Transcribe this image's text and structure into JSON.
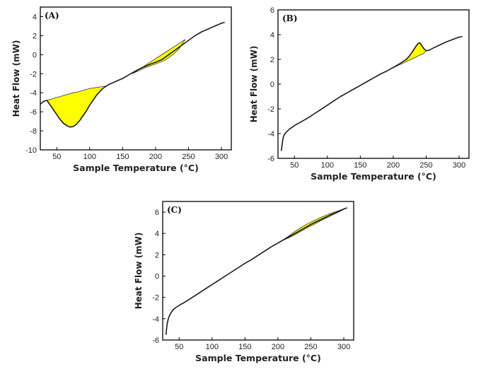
{
  "figure": {
    "curve_color": "#1a1a1a",
    "fill_color": "#ffff00",
    "fill_stroke": "#b8a800"
  },
  "chart_data": [
    {
      "type": "line",
      "panel_label": "(A)",
      "xlabel": "Sample Temperature (°C)",
      "ylabel": "Heat Flow (mW)",
      "xlim": [
        25,
        315
      ],
      "ylim": [
        -10,
        5
      ],
      "xticks": [
        50,
        100,
        150,
        200,
        250,
        300
      ],
      "yticks": [
        -10,
        -8,
        -6,
        -4,
        -2,
        0,
        2,
        4
      ],
      "grid": false,
      "series": [
        {
          "x": [
            25,
            30,
            35,
            40,
            45,
            50,
            55,
            60,
            65,
            70,
            75,
            80,
            85,
            90,
            95,
            100,
            105,
            110,
            115,
            120,
            125,
            130,
            140,
            150,
            160,
            170,
            180,
            190,
            200,
            210,
            220,
            230,
            240,
            250,
            260,
            270,
            280,
            290,
            300,
            305
          ],
          "y": [
            -5.2,
            -4.9,
            -4.8,
            -5.3,
            -5.8,
            -6.3,
            -6.8,
            -7.2,
            -7.45,
            -7.6,
            -7.55,
            -7.3,
            -6.9,
            -6.4,
            -5.9,
            -5.3,
            -4.8,
            -4.3,
            -3.9,
            -3.55,
            -3.3,
            -3.1,
            -2.8,
            -2.5,
            -2.1,
            -1.7,
            -1.35,
            -1.05,
            -0.8,
            -0.5,
            0.0,
            0.5,
            1.0,
            1.5,
            2.0,
            2.4,
            2.7,
            3.0,
            3.3,
            3.4
          ]
        }
      ],
      "shaded_regions": [
        {
          "x": [
            35,
            40,
            45,
            50,
            55,
            60,
            65,
            70,
            75,
            80,
            85,
            90,
            95,
            100,
            105,
            110,
            115,
            120,
            125
          ],
          "upper": [
            -4.8,
            -4.7,
            -4.6,
            -4.5,
            -4.4,
            -4.3,
            -4.2,
            -4.1,
            -4.0,
            -3.95,
            -3.85,
            -3.75,
            -3.65,
            -3.55,
            -3.5,
            -3.45,
            -3.4,
            -3.35,
            -3.3
          ],
          "lower": [
            -4.8,
            -5.3,
            -5.8,
            -6.3,
            -6.8,
            -7.2,
            -7.45,
            -7.6,
            -7.55,
            -7.3,
            -6.9,
            -6.4,
            -5.9,
            -5.3,
            -4.8,
            -4.3,
            -3.9,
            -3.55,
            -3.3
          ]
        },
        {
          "x": [
            165,
            175,
            185,
            195,
            205,
            215,
            225,
            235,
            245
          ],
          "upper": [
            -2.0,
            -1.55,
            -1.1,
            -0.65,
            -0.2,
            0.25,
            0.7,
            1.15,
            1.6
          ],
          "lower": [
            -2.0,
            -1.65,
            -1.35,
            -1.1,
            -0.85,
            -0.55,
            -0.05,
            0.55,
            1.6
          ]
        }
      ]
    },
    {
      "type": "line",
      "panel_label": "(B)",
      "xlabel": "Sample Temperature (°C)",
      "ylabel": "Heat Flow (mW)",
      "xlim": [
        25,
        315
      ],
      "ylim": [
        -6,
        6
      ],
      "xticks": [
        50,
        100,
        150,
        200,
        250,
        300
      ],
      "yticks": [
        -6,
        -4,
        -2,
        0,
        2,
        4,
        6
      ],
      "grid": false,
      "series": [
        {
          "x": [
            30,
            31,
            32,
            33,
            35,
            38,
            42,
            46,
            50,
            60,
            70,
            80,
            90,
            100,
            110,
            120,
            130,
            140,
            150,
            160,
            170,
            180,
            190,
            200,
            210,
            220,
            225,
            230,
            235,
            238,
            240,
            243,
            246,
            250,
            255,
            260,
            270,
            280,
            290,
            300,
            305
          ],
          "y": [
            -5.4,
            -5.0,
            -4.6,
            -4.3,
            -4.05,
            -3.85,
            -3.65,
            -3.5,
            -3.35,
            -3.05,
            -2.75,
            -2.4,
            -2.05,
            -1.7,
            -1.35,
            -1.0,
            -0.7,
            -0.4,
            -0.1,
            0.2,
            0.5,
            0.8,
            1.05,
            1.35,
            1.65,
            2.0,
            2.3,
            2.7,
            3.1,
            3.3,
            3.35,
            3.15,
            2.9,
            2.7,
            2.75,
            2.9,
            3.15,
            3.4,
            3.6,
            3.8,
            3.85
          ]
        }
      ],
      "shaded_regions": [
        {
          "x": [
            195,
            205,
            215,
            225,
            230,
            235,
            238,
            240,
            243,
            246,
            250
          ],
          "upper": [
            1.2,
            1.5,
            1.8,
            2.3,
            2.7,
            3.1,
            3.3,
            3.35,
            3.15,
            2.9,
            2.7
          ],
          "lower": [
            1.2,
            1.45,
            1.7,
            1.95,
            2.08,
            2.2,
            2.28,
            2.33,
            2.4,
            2.48,
            2.7
          ]
        }
      ]
    },
    {
      "type": "line",
      "panel_label": "(C)",
      "xlabel": "Sample Temperature (°C)",
      "ylabel": "Heat Flow (mW)",
      "xlim": [
        25,
        315
      ],
      "ylim": [
        -6,
        7
      ],
      "xticks": [
        50,
        100,
        150,
        200,
        250,
        300
      ],
      "yticks": [
        -6,
        -4,
        -2,
        0,
        2,
        4,
        6
      ],
      "grid": false,
      "series": [
        {
          "x": [
            30,
            31,
            32,
            34,
            37,
            41,
            45,
            50,
            60,
            70,
            80,
            90,
            100,
            110,
            120,
            130,
            140,
            150,
            160,
            170,
            180,
            190,
            200,
            210,
            220,
            230,
            240,
            250,
            260,
            270,
            280,
            290,
            300,
            305
          ],
          "y": [
            -5.5,
            -4.9,
            -4.4,
            -3.9,
            -3.5,
            -3.15,
            -2.95,
            -2.75,
            -2.4,
            -2.0,
            -1.6,
            -1.2,
            -0.8,
            -0.4,
            0.0,
            0.4,
            0.8,
            1.2,
            1.55,
            1.95,
            2.35,
            2.75,
            3.1,
            3.45,
            3.8,
            4.15,
            4.5,
            4.85,
            5.15,
            5.45,
            5.75,
            6.0,
            6.3,
            6.4
          ]
        }
      ],
      "shaded_regions": [
        {
          "x": [
            205,
            215,
            225,
            235,
            245,
            255,
            265,
            275,
            285,
            295,
            303
          ],
          "upper": [
            3.3,
            3.7,
            4.15,
            4.55,
            4.9,
            5.2,
            5.5,
            5.75,
            6.0,
            6.2,
            6.35
          ],
          "lower": [
            3.3,
            3.55,
            3.85,
            4.2,
            4.55,
            4.85,
            5.2,
            5.5,
            5.8,
            6.1,
            6.35
          ]
        }
      ]
    }
  ]
}
